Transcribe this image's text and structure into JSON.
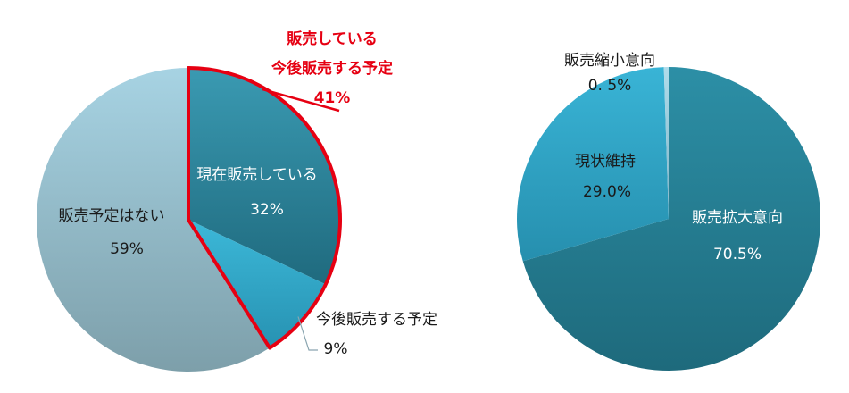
{
  "chart_data": [
    {
      "type": "pie",
      "title": "",
      "slices": [
        {
          "label": "現在販売している",
          "value": 32,
          "value_text": "32%",
          "color": "#2a7e93"
        },
        {
          "label": "今後販売する予定",
          "value": 9,
          "value_text": "9%",
          "color": "#2fa6c6"
        },
        {
          "label": "販売予定はない",
          "value": 59,
          "value_text": "59%",
          "color": "#93bccb"
        }
      ],
      "callout": {
        "line1": "販売している",
        "line2": "今後販売する予定",
        "value_text": "41%",
        "color": "#e60012"
      }
    },
    {
      "type": "pie",
      "title": "",
      "slices": [
        {
          "label": "販売拡大意向",
          "value": 70.5,
          "value_text": "70.5%",
          "color": "#24788f"
        },
        {
          "label": "現状維持",
          "value": 29.0,
          "value_text": "29.0%",
          "color": "#2e9fc0"
        },
        {
          "label": "販売縮小意向",
          "value": 0.5,
          "value_text": "0. 5%",
          "color": "#8fc4d8"
        }
      ]
    }
  ]
}
